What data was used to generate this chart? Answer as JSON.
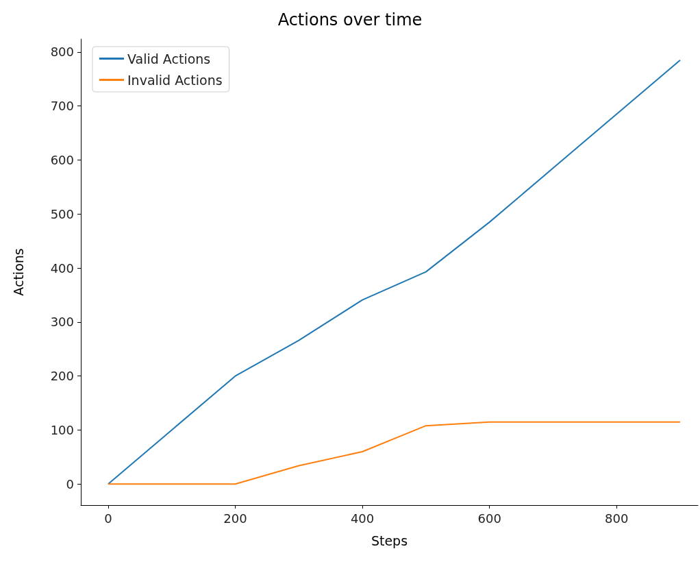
{
  "chart_data": {
    "type": "line",
    "title": "Actions over time",
    "xlabel": "Steps",
    "ylabel": "Actions",
    "x": [
      0,
      100,
      200,
      300,
      400,
      500,
      600,
      700,
      800,
      900
    ],
    "series": [
      {
        "name": "Valid Actions",
        "color": "#1f77b4",
        "values": [
          0,
          100,
          200,
          266,
          341,
          393,
          485,
          585,
          685,
          785
        ]
      },
      {
        "name": "Invalid Actions",
        "color": "#ff7f0e",
        "values": [
          0,
          0,
          0,
          34,
          60,
          108,
          115,
          115,
          115,
          115
        ]
      }
    ],
    "xlim": [
      -43,
      928
    ],
    "xticks": [
      0,
      200,
      400,
      600,
      800
    ],
    "ylim": [
      -39,
      824
    ],
    "yticks": [
      0,
      100,
      200,
      300,
      400,
      500,
      600,
      700,
      800
    ],
    "grid": false,
    "legend": "top left",
    "marker": "none",
    "line_style": "solid"
  }
}
